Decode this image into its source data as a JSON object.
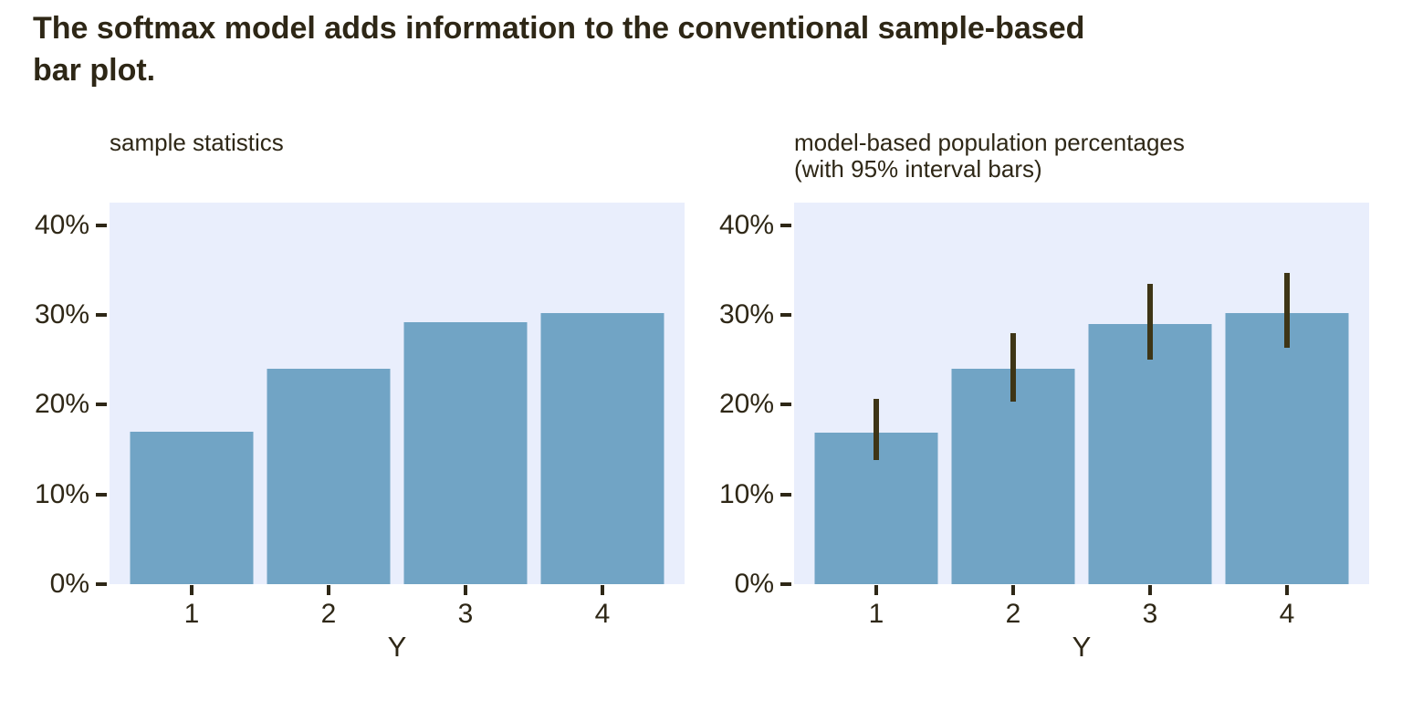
{
  "page_title": "The softmax model adds information to the conventional sample-based\nbar plot.",
  "colors": {
    "text": "#2e2716",
    "bar_fill": "#71a4c5",
    "panel_background": "#e9eefc",
    "interval_bar": "#3e3516",
    "tick_mark": "#2e2716",
    "page_background": "#ffffff"
  },
  "chart_data": [
    {
      "type": "bar",
      "panel": "left",
      "subtitle": "sample statistics",
      "categories": [
        "1",
        "2",
        "3",
        "4"
      ],
      "values": [
        17,
        24,
        29.2,
        30.2
      ],
      "xlabel": "Y",
      "ylabel": "",
      "y_ticks": [
        0,
        10,
        20,
        30,
        40
      ],
      "y_tick_labels": [
        "0%",
        "10%",
        "20%",
        "30%",
        "40%"
      ],
      "ylim": [
        0,
        42.5
      ],
      "grid": false,
      "legend": false
    },
    {
      "type": "bar",
      "panel": "right",
      "subtitle": "model-based population percentages\n(with 95% interval bars)",
      "categories": [
        "1",
        "2",
        "3",
        "4"
      ],
      "values": [
        16.9,
        24,
        29,
        30.2
      ],
      "intervals_95": [
        [
          13.8,
          20.6
        ],
        [
          20.3,
          28.0
        ],
        [
          25.0,
          33.5
        ],
        [
          26.3,
          34.7
        ]
      ],
      "xlabel": "Y",
      "ylabel": "",
      "y_ticks": [
        0,
        10,
        20,
        30,
        40
      ],
      "y_tick_labels": [
        "0%",
        "10%",
        "20%",
        "30%",
        "40%"
      ],
      "ylim": [
        0,
        42.5
      ],
      "grid": false,
      "legend": false
    }
  ]
}
